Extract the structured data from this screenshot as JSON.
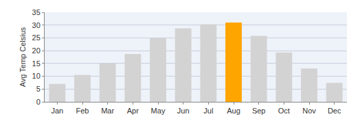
{
  "chart_data": {
    "type": "bar",
    "categories": [
      "Jan",
      "Feb",
      "Mar",
      "Apr",
      "May",
      "Jun",
      "Jul",
      "Aug",
      "Sep",
      "Oct",
      "Nov",
      "Dec"
    ],
    "values": [
      7,
      10.5,
      15,
      18.7,
      25,
      28.7,
      30.3,
      31,
      25.8,
      19.3,
      13,
      7.4
    ],
    "colors": [
      "#d3d3d3",
      "#d3d3d3",
      "#d3d3d3",
      "#d3d3d3",
      "#d3d3d3",
      "#d3d3d3",
      "#d3d3d3",
      "#ffa500",
      "#d3d3d3",
      "#d3d3d3",
      "#d3d3d3",
      "#d3d3d3"
    ],
    "ylabel": "Avg Temp Celsius",
    "ylim": [
      0,
      35
    ],
    "yticks": [
      0,
      5,
      10,
      15,
      20,
      25,
      30,
      35
    ],
    "grid": true
  }
}
